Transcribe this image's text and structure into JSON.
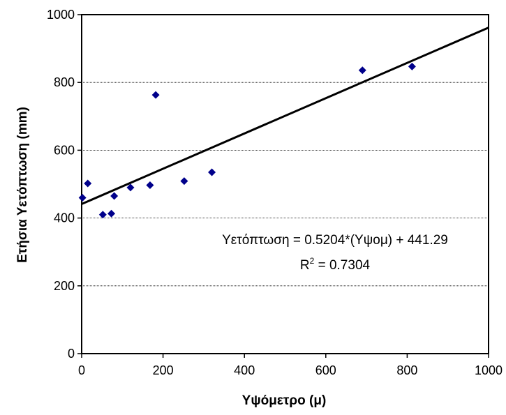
{
  "chart_data": {
    "type": "scatter",
    "xlabel": "Υψόμετρο (μ)",
    "ylabel": "Ετήσια Υετόπτωση (mm)",
    "xlim": [
      0,
      1000
    ],
    "ylim": [
      0,
      1000
    ],
    "x_ticks": [
      "0",
      "200",
      "400",
      "600",
      "800",
      "1000"
    ],
    "y_ticks": [
      "0",
      "200",
      "400",
      "600",
      "800",
      "1000"
    ],
    "grid": "horizontal",
    "marker": "diamond",
    "marker_color": "#00008b",
    "points": [
      {
        "x": 2,
        "y": 460
      },
      {
        "x": 15,
        "y": 502
      },
      {
        "x": 52,
        "y": 410
      },
      {
        "x": 73,
        "y": 413
      },
      {
        "x": 80,
        "y": 465
      },
      {
        "x": 120,
        "y": 490
      },
      {
        "x": 168,
        "y": 497
      },
      {
        "x": 182,
        "y": 763
      },
      {
        "x": 252,
        "y": 509
      },
      {
        "x": 320,
        "y": 535
      },
      {
        "x": 690,
        "y": 836
      },
      {
        "x": 812,
        "y": 847
      }
    ],
    "trendline": {
      "slope": 0.5204,
      "intercept": 441.29,
      "x_range": [
        0,
        1000
      ],
      "color": "#000000"
    },
    "equation_text": "Υετόπτωση = 0.5204*(Υψομ) + 441.29",
    "r2_label": "R",
    "r2_exp": "2",
    "r2_value": " = 0.7304"
  }
}
